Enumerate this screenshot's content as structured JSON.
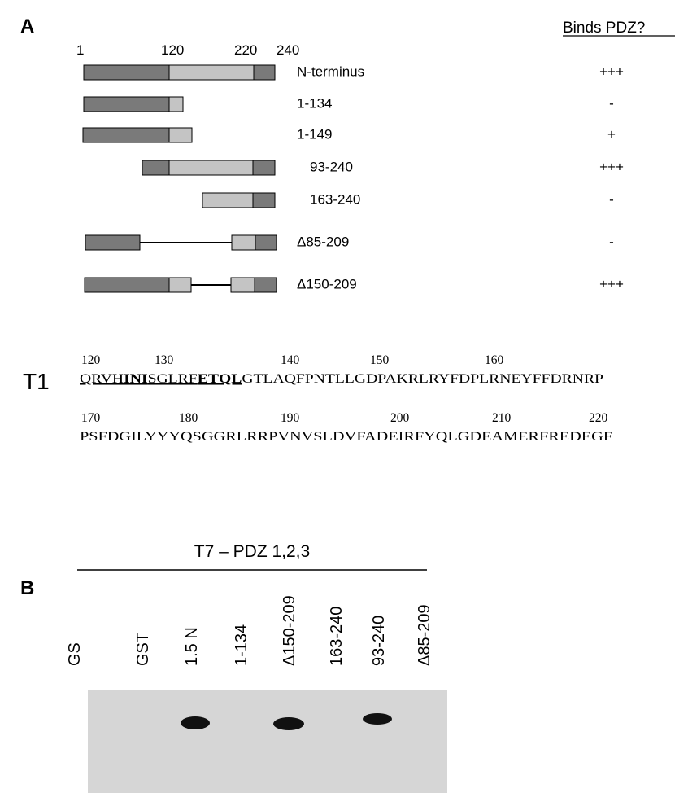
{
  "panel_a": {
    "label": "A",
    "column_header": "Binds PDZ?",
    "scale": [
      "1",
      "120",
      "220",
      "240"
    ],
    "constructs": [
      {
        "name": "N-terminus",
        "binds": "+++"
      },
      {
        "name": "1-134",
        "binds": "-"
      },
      {
        "name": "1-149",
        "binds": "+"
      },
      {
        "name": "93-240",
        "binds": "+++"
      },
      {
        "name": "163-240",
        "binds": "-"
      },
      {
        "name": "Δ85-209",
        "binds": "-"
      },
      {
        "name": "Δ150-209",
        "binds": "+++"
      }
    ],
    "sequence": {
      "label": "T1",
      "rows": [
        {
          "numbers": [
            "120",
            "130",
            "140",
            "150",
            "160"
          ],
          "segments": [
            {
              "text": "QRVH",
              "style": "underline"
            },
            {
              "text": "INI",
              "style": "bold-underline"
            },
            {
              "text": "SGLRF",
              "style": "underline"
            },
            {
              "text": "ETQL",
              "style": "bold-underline"
            },
            {
              "text": "GTLAQFPNTLLGDPAKRLRYFDPLRNEYFFDRNRP",
              "style": "plain"
            }
          ]
        },
        {
          "numbers": [
            "170",
            "180",
            "190",
            "200",
            "210",
            "220"
          ],
          "segments": [
            {
              "text": "PSFDGILYYYQSGGRLRRPVNVSLDVFADEIRFYQLGDEAMERFREDEGF",
              "style": "plain"
            }
          ]
        }
      ]
    }
  },
  "panel_b": {
    "label": "B",
    "title": "T7 – PDZ 1,2,3",
    "lanes": [
      "GS",
      "GST",
      "1.5 N",
      "1-134",
      "Δ150-209",
      "163-240",
      "93-240",
      "Δ85-209"
    ]
  }
}
